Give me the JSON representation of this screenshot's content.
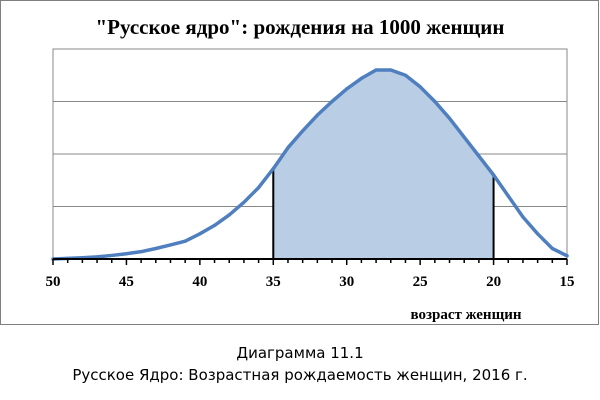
{
  "chart_data": {
    "type": "area",
    "title": "\"Русское ядро\": рождения на 1000 женщин",
    "xlabel": "возраст женщин",
    "ylabel": "",
    "x_reversed": true,
    "xlim": [
      50,
      15
    ],
    "ylim": [
      0,
      100
    ],
    "ygrid_steps": [
      25,
      50,
      75,
      100
    ],
    "x_ticks": [
      50,
      45,
      40,
      35,
      30,
      25,
      20,
      15
    ],
    "grid": true,
    "legend": "none",
    "y_ticks_shown": false,
    "shaded_range": [
      35,
      20
    ],
    "colors": {
      "line": "#4f7fbe",
      "fill": "#b9cde5",
      "grid": "#888888",
      "markers": "#000000"
    },
    "series": [
      {
        "x": [
          50,
          49,
          48,
          47,
          46,
          45,
          44,
          43,
          42,
          41,
          40,
          39,
          38,
          37,
          36,
          35,
          34,
          33,
          32,
          31,
          30,
          29,
          28,
          27,
          26,
          25,
          24,
          23,
          22,
          21,
          20,
          19,
          18,
          17,
          16,
          15
        ],
        "values": [
          0,
          0.3,
          0.6,
          1,
          1.7,
          2.5,
          3.5,
          5,
          6.7,
          8.5,
          12,
          16,
          21,
          27,
          34,
          43,
          53,
          61,
          68.5,
          75,
          81,
          86,
          90,
          90,
          87.5,
          82,
          75,
          67,
          58,
          49,
          40,
          30,
          20,
          12,
          5,
          1.5
        ]
      }
    ]
  },
  "caption": {
    "line1": "Диаграмма 11.1",
    "line2": "Русское Ядро: Возрастная рождаемость женщин, 2016 г."
  }
}
